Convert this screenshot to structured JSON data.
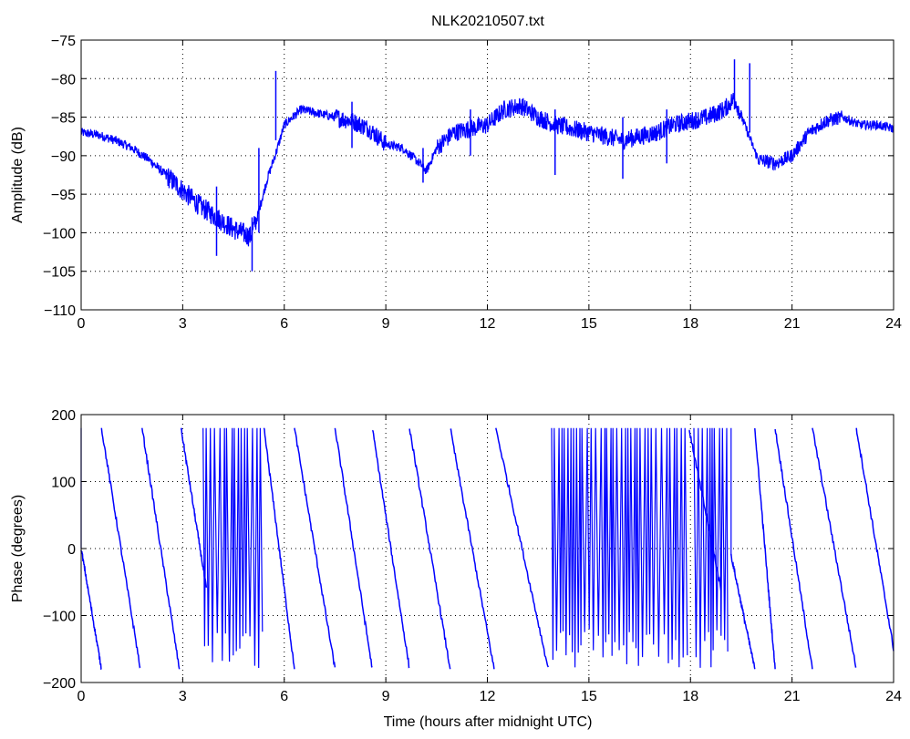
{
  "figure": {
    "title": "NLK20210507.txt"
  },
  "chart_data": [
    {
      "type": "line",
      "title": "NLK20210507.txt",
      "xlabel": "",
      "ylabel": "Amplitude (dB)",
      "xlim": [
        0,
        24
      ],
      "ylim": [
        -110,
        -75
      ],
      "xticks": [
        0,
        3,
        6,
        9,
        12,
        15,
        18,
        21,
        24
      ],
      "yticks": [
        -110,
        -105,
        -100,
        -95,
        -90,
        -85,
        -80,
        -75
      ],
      "grid": true,
      "line_color": "#0000ff",
      "series": [
        {
          "x": [
            0,
            0.5,
            1.0,
            1.5,
            2.0,
            2.5,
            3.0,
            3.5,
            4.0,
            4.5,
            5.0,
            5.2,
            5.5,
            5.8,
            6.0,
            6.5,
            7.0,
            7.5,
            8.0,
            8.5,
            9.0,
            9.5,
            10.0,
            10.2,
            10.5,
            11.0,
            11.5,
            12.0,
            12.5,
            13.0,
            13.5,
            14.0,
            14.5,
            15.0,
            15.5,
            16.0,
            16.5,
            17.0,
            17.5,
            18.0,
            18.5,
            19.0,
            19.3,
            19.6,
            20.0,
            20.5,
            21.0,
            21.5,
            22.0,
            22.5,
            23.0,
            23.5,
            24.0
          ],
          "y": [
            -87,
            -87.3,
            -88,
            -89,
            -90.5,
            -92.5,
            -94.5,
            -96.5,
            -98,
            -99.5,
            -100.5,
            -98,
            -93,
            -89,
            -86,
            -84,
            -84.5,
            -85,
            -85.5,
            -86.5,
            -88.5,
            -89,
            -91,
            -92,
            -89,
            -87,
            -86.5,
            -86,
            -84,
            -83.5,
            -85,
            -86,
            -86.5,
            -87,
            -87.5,
            -88,
            -87.5,
            -87,
            -86,
            -85.5,
            -85,
            -84,
            -82.5,
            -86,
            -90.5,
            -91,
            -90,
            -87,
            -85.5,
            -85,
            -86,
            -86,
            -86.5
          ],
          "spikes": [
            {
              "x": 4.0,
              "y_min": -103,
              "y_max": -94
            },
            {
              "x": 5.05,
              "y_min": -105,
              "y_max": -98
            },
            {
              "x": 5.25,
              "y_min": -100,
              "y_max": -89
            },
            {
              "x": 5.75,
              "y_min": -88,
              "y_max": -79
            },
            {
              "x": 8.0,
              "y_min": -89,
              "y_max": -83
            },
            {
              "x": 10.1,
              "y_min": -93.5,
              "y_max": -89
            },
            {
              "x": 11.5,
              "y_min": -90,
              "y_max": -84
            },
            {
              "x": 14.0,
              "y_min": -92.5,
              "y_max": -84
            },
            {
              "x": 16.0,
              "y_min": -93,
              "y_max": -85
            },
            {
              "x": 17.3,
              "y_min": -91,
              "y_max": -84
            },
            {
              "x": 19.3,
              "y_min": -84,
              "y_max": -77.5
            },
            {
              "x": 19.75,
              "y_min": -87,
              "y_max": -78
            }
          ]
        }
      ]
    },
    {
      "type": "line",
      "title": "",
      "xlabel": "Time (hours after midnight UTC)",
      "ylabel": "Phase (degrees)",
      "xlim": [
        0,
        24
      ],
      "ylim": [
        -200,
        200
      ],
      "xticks": [
        0,
        3,
        6,
        9,
        12,
        15,
        18,
        21,
        24
      ],
      "yticks": [
        -200,
        -100,
        0,
        100,
        200
      ],
      "grid": true,
      "line_color": "#0000ff",
      "series": [
        {
          "segments": [
            {
              "x0": 0.0,
              "x1": 0.6,
              "y0": 0,
              "y1": -180
            },
            {
              "x0": 0.6,
              "x1": 1.75,
              "y0": 180,
              "y1": -180
            },
            {
              "x0": 1.8,
              "x1": 2.9,
              "y0": 180,
              "y1": -180
            },
            {
              "x0": 2.95,
              "x1": 3.7,
              "y0": 180,
              "y1": -60
            },
            {
              "x0": 5.4,
              "x1": 6.3,
              "y0": 180,
              "y1": -180
            },
            {
              "x0": 6.3,
              "x1": 7.5,
              "y0": 180,
              "y1": -180
            },
            {
              "x0": 7.5,
              "x1": 8.6,
              "y0": 180,
              "y1": -180
            },
            {
              "x0": 8.6,
              "x1": 9.7,
              "y0": 180,
              "y1": -180
            },
            {
              "x0": 9.7,
              "x1": 10.9,
              "y0": 180,
              "y1": -180
            },
            {
              "x0": 10.9,
              "x1": 12.2,
              "y0": 180,
              "y1": -180
            },
            {
              "x0": 12.25,
              "x1": 13.8,
              "y0": 180,
              "y1": -180
            },
            {
              "x0": 17.95,
              "x1": 18.9,
              "y0": 180,
              "y1": -60
            },
            {
              "x0": 19.2,
              "x1": 19.9,
              "y0": -10,
              "y1": -180
            },
            {
              "x0": 19.9,
              "x1": 20.5,
              "y0": 180,
              "y1": -180
            },
            {
              "x0": 20.5,
              "x1": 21.6,
              "y0": 180,
              "y1": -180
            },
            {
              "x0": 21.6,
              "x1": 22.9,
              "y0": 180,
              "y1": -180
            },
            {
              "x0": 22.9,
              "x1": 24.0,
              "y0": 180,
              "y1": -150
            }
          ],
          "wrap_regions": [
            {
              "x0": 3.6,
              "x1": 5.4
            },
            {
              "x0": 13.9,
              "x1": 17.9
            },
            {
              "x0": 18.1,
              "x1": 19.1
            }
          ]
        }
      ]
    }
  ]
}
